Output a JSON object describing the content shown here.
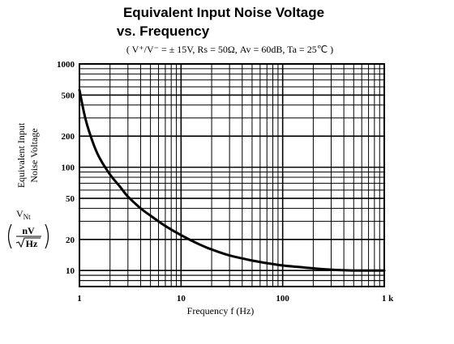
{
  "title_line1": "Equivalent Input Noise Voltage",
  "title_line2": "vs. Frequency",
  "conditions": "( V⁺/V⁻ = ± 15V,  Rs = 50Ω,  Av = 60dB,  Ta = 25℃ )",
  "chart_data": {
    "type": "line",
    "title": "Equivalent Input Noise Voltage vs. Frequency",
    "subtitle": "( V⁺/V⁻ = ± 15V,  Rs = 50Ω,  Av = 60dB,  Ta = 25℃ )",
    "xlabel": "Frequency  f  (Hz)",
    "ylabel_line1": "Equivalent Input",
    "ylabel_line2": "Noise Voltage",
    "ysymbol": "V",
    "ysymbol_sub": "Nt",
    "yunit_num": "nV",
    "yunit_den": "Hz",
    "x_scale": "log",
    "y_scale": "log",
    "xlim": [
      1,
      1000
    ],
    "ylim": [
      7,
      1000
    ],
    "x_tick_labels": [
      "1",
      "10",
      "100",
      "1 k"
    ],
    "x_tick_values": [
      1,
      10,
      100,
      1000
    ],
    "y_tick_labels": [
      "1000",
      "500",
      "200",
      "100",
      "50",
      "20",
      "10"
    ],
    "y_tick_values": [
      1000,
      500,
      200,
      100,
      50,
      20,
      10
    ],
    "grid": true,
    "series": [
      {
        "x": [
          1,
          1.1,
          1.2,
          1.4,
          1.6,
          2,
          2.5,
          3,
          4,
          5,
          7,
          10,
          15,
          20,
          30,
          50,
          70,
          100,
          150,
          200,
          300,
          500,
          700,
          1000
        ],
        "y": [
          560,
          350,
          250,
          160,
          120,
          85,
          65,
          52,
          40,
          34,
          27,
          22,
          18,
          16,
          14,
          12.5,
          11.8,
          11.2,
          10.8,
          10.5,
          10.2,
          10,
          10,
          10
        ]
      }
    ]
  }
}
